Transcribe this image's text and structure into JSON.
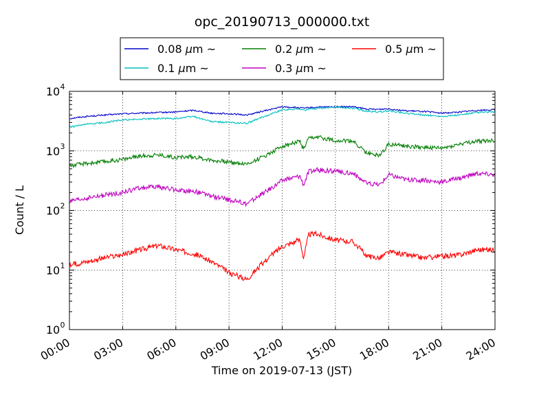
{
  "chart_data": {
    "type": "line",
    "title": "opc_20190713_000000.txt",
    "xlabel": "Time on 2019-07-13 (JST)",
    "ylabel": "Count / L",
    "yscale": "log",
    "ylim": [
      1,
      10000
    ],
    "xlim": [
      "00:00",
      "24:00"
    ],
    "x_ticks": [
      "00:00",
      "03:00",
      "06:00",
      "09:00",
      "12:00",
      "15:00",
      "18:00",
      "21:00",
      "24:00"
    ],
    "y_ticks": [
      {
        "base": "10",
        "exp": "0"
      },
      {
        "base": "10",
        "exp": "1"
      },
      {
        "base": "10",
        "exp": "2"
      },
      {
        "base": "10",
        "exp": "3"
      },
      {
        "base": "10",
        "exp": "4"
      }
    ],
    "grid": true,
    "legend_position": "top-center",
    "legend_unit": "μm",
    "legend_suffix": "~",
    "x_hours": [
      0,
      1,
      2,
      3,
      4,
      5,
      6,
      7,
      8,
      9,
      10,
      11,
      12,
      13,
      13.2,
      13.5,
      14,
      15,
      16,
      16.8,
      17.5,
      18,
      19,
      20,
      21,
      22,
      23,
      24
    ],
    "series": [
      {
        "name": "0.08",
        "color": "#0000cc",
        "values": [
          3500,
          3800,
          4000,
          4200,
          4300,
          4400,
          4500,
          4800,
          4300,
          4200,
          4000,
          4700,
          5500,
          5300,
          5200,
          5300,
          5400,
          5500,
          5500,
          5000,
          5000,
          5100,
          4700,
          4600,
          4300,
          4500,
          4800,
          4900
        ]
      },
      {
        "name": "0.1",
        "color": "#00bfbf",
        "values": [
          2500,
          2800,
          3000,
          3300,
          3400,
          3500,
          3500,
          3800,
          3100,
          3000,
          2900,
          3800,
          4900,
          5100,
          4800,
          5000,
          5200,
          5400,
          5200,
          4600,
          4500,
          4700,
          4300,
          4000,
          3800,
          4000,
          4400,
          4500
        ]
      },
      {
        "name": "0.2",
        "color": "#007f00",
        "values": [
          560,
          620,
          660,
          720,
          820,
          860,
          780,
          800,
          700,
          650,
          600,
          820,
          1200,
          1450,
          1050,
          1600,
          1700,
          1500,
          1450,
          900,
          850,
          1300,
          1200,
          1150,
          1100,
          1300,
          1450,
          1500
        ]
      },
      {
        "name": "0.3",
        "color": "#bf00bf",
        "values": [
          140,
          160,
          180,
          200,
          240,
          250,
          220,
          210,
          175,
          150,
          130,
          200,
          320,
          380,
          270,
          450,
          480,
          450,
          420,
          280,
          270,
          400,
          330,
          320,
          300,
          350,
          420,
          400
        ]
      },
      {
        "name": "0.5",
        "color": "#ff0000",
        "values": [
          12,
          14,
          16,
          18,
          22,
          26,
          22,
          19,
          14,
          9,
          7,
          14,
          25,
          32,
          16,
          40,
          40,
          32,
          30,
          17,
          16,
          20,
          18,
          16,
          17,
          18,
          22,
          22
        ]
      }
    ]
  }
}
